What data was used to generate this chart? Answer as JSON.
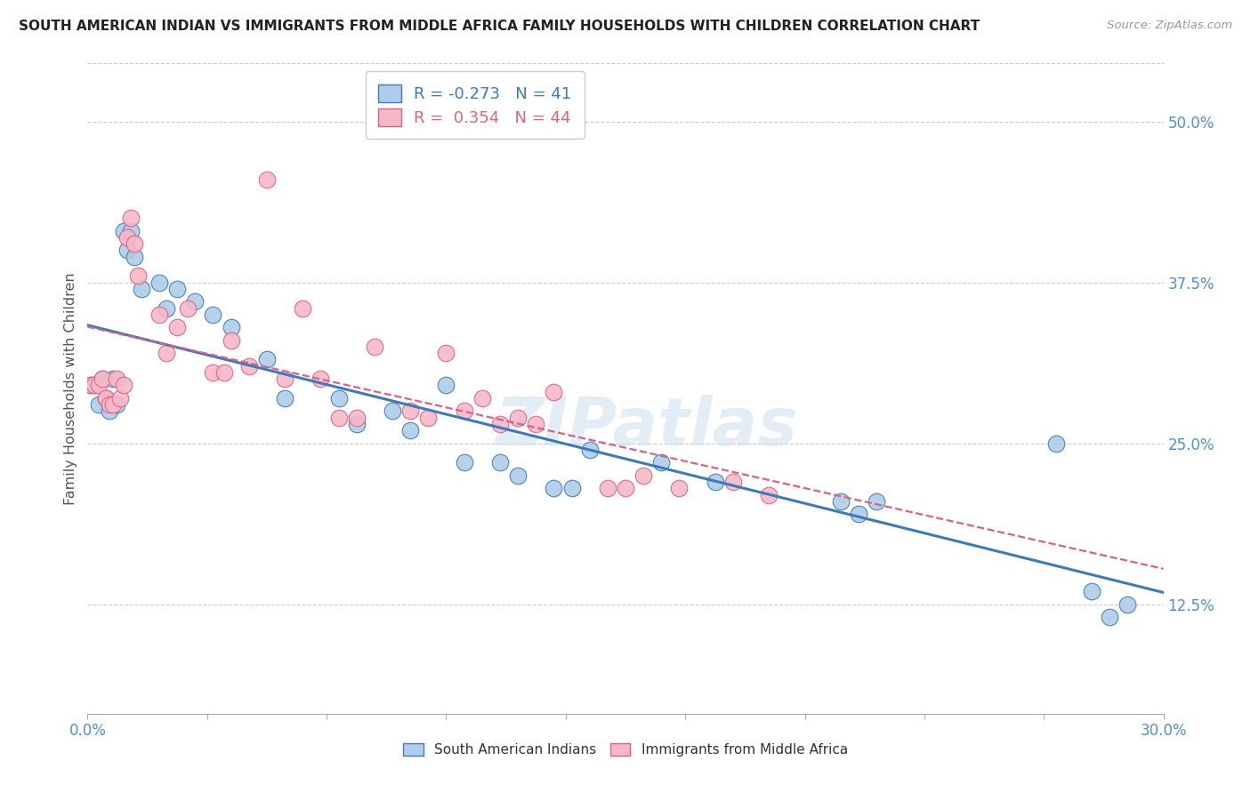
{
  "title": "SOUTH AMERICAN INDIAN VS IMMIGRANTS FROM MIDDLE AFRICA FAMILY HOUSEHOLDS WITH CHILDREN CORRELATION CHART",
  "source": "Source: ZipAtlas.com",
  "ylabel": "Family Households with Children",
  "ytick_labels": [
    "12.5%",
    "25.0%",
    "37.5%",
    "50.0%"
  ],
  "ytick_values": [
    0.125,
    0.25,
    0.375,
    0.5
  ],
  "xlim": [
    0.0,
    0.3
  ],
  "ylim": [
    0.04,
    0.545
  ],
  "r_blue": -0.273,
  "n_blue": 41,
  "r_pink": 0.354,
  "n_pink": 44,
  "legend_label_blue": "South American Indians",
  "legend_label_pink": "Immigrants from Middle Africa",
  "color_blue": "#aecde8",
  "color_pink": "#f5b8c8",
  "line_color_blue": "#3a7bbf",
  "line_color_pink": "#e06080",
  "background_color": "#ffffff",
  "watermark": "ZIPatlas",
  "blue_x": [
    0.001,
    0.002,
    0.003,
    0.004,
    0.005,
    0.006,
    0.007,
    0.008,
    0.01,
    0.011,
    0.012,
    0.013,
    0.015,
    0.02,
    0.022,
    0.025,
    0.03,
    0.035,
    0.04,
    0.05,
    0.055,
    0.07,
    0.075,
    0.085,
    0.09,
    0.1,
    0.105,
    0.115,
    0.12,
    0.13,
    0.135,
    0.14,
    0.16,
    0.175,
    0.21,
    0.215,
    0.22,
    0.27,
    0.28,
    0.285,
    0.29
  ],
  "blue_y": [
    0.295,
    0.295,
    0.28,
    0.3,
    0.285,
    0.275,
    0.3,
    0.28,
    0.415,
    0.4,
    0.415,
    0.395,
    0.37,
    0.375,
    0.355,
    0.37,
    0.36,
    0.35,
    0.34,
    0.315,
    0.285,
    0.285,
    0.265,
    0.275,
    0.26,
    0.295,
    0.235,
    0.235,
    0.225,
    0.215,
    0.215,
    0.245,
    0.235,
    0.22,
    0.205,
    0.195,
    0.205,
    0.25,
    0.135,
    0.115,
    0.125
  ],
  "pink_x": [
    0.001,
    0.002,
    0.003,
    0.004,
    0.005,
    0.006,
    0.007,
    0.008,
    0.009,
    0.01,
    0.011,
    0.012,
    0.013,
    0.014,
    0.02,
    0.022,
    0.025,
    0.028,
    0.035,
    0.038,
    0.045,
    0.055,
    0.06,
    0.07,
    0.075,
    0.08,
    0.09,
    0.095,
    0.1,
    0.105,
    0.11,
    0.115,
    0.12,
    0.125,
    0.13,
    0.145,
    0.15,
    0.155,
    0.165,
    0.18,
    0.19,
    0.04,
    0.05,
    0.065
  ],
  "pink_y": [
    0.295,
    0.295,
    0.295,
    0.3,
    0.285,
    0.28,
    0.28,
    0.3,
    0.285,
    0.295,
    0.41,
    0.425,
    0.405,
    0.38,
    0.35,
    0.32,
    0.34,
    0.355,
    0.305,
    0.305,
    0.31,
    0.3,
    0.355,
    0.27,
    0.27,
    0.325,
    0.275,
    0.27,
    0.32,
    0.275,
    0.285,
    0.265,
    0.27,
    0.265,
    0.29,
    0.215,
    0.215,
    0.225,
    0.215,
    0.22,
    0.21,
    0.33,
    0.455,
    0.3
  ]
}
